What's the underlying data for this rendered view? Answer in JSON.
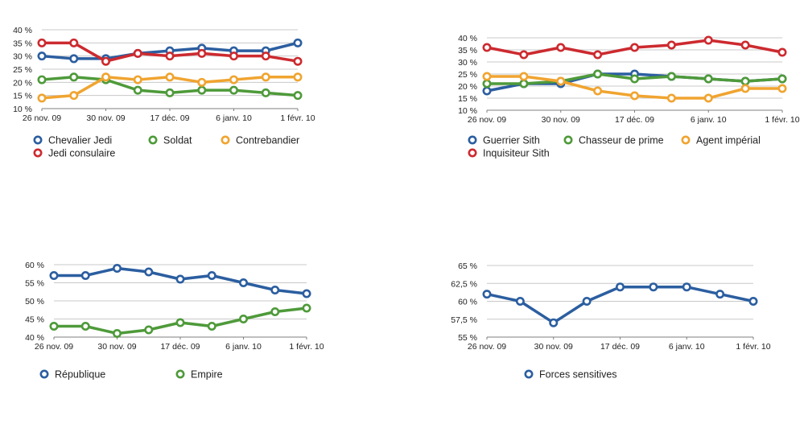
{
  "colors": {
    "blue": "#2b5ea0",
    "green": "#4e9a3a",
    "orange": "#f0a430",
    "red": "#cc2a2f",
    "grid": "#c8c8c8",
    "axis": "#7f7f7f",
    "text": "#222222"
  },
  "chart_data": [
    {
      "type": "line",
      "title": "",
      "xlabel": "",
      "ylabel": "",
      "x_tick_labels": [
        "26 nov. 09",
        "30 nov. 09",
        "17 déc. 09",
        "6 janv. 10",
        "1 févr. 10"
      ],
      "y_tick_labels": [
        "10 %",
        "15 %",
        "20 %",
        "25 %",
        "30 %",
        "35 %",
        "40 %"
      ],
      "ylim": [
        10,
        40
      ],
      "points": 9,
      "grid": true,
      "legend_position": "bottom",
      "series": [
        {
          "name": "Chevalier Jedi",
          "color_key": "blue",
          "values": [
            30,
            29,
            29,
            31,
            32,
            33,
            32,
            32,
            35
          ]
        },
        {
          "name": "Soldat",
          "color_key": "green",
          "values": [
            21,
            22,
            21,
            17,
            16,
            17,
            17,
            16,
            15
          ]
        },
        {
          "name": "Contrebandier",
          "color_key": "orange",
          "values": [
            14,
            15,
            22,
            21,
            22,
            20,
            21,
            22,
            22
          ]
        },
        {
          "name": "Jedi consulaire",
          "color_key": "red",
          "values": [
            35,
            35,
            28,
            31,
            30,
            31,
            30,
            30,
            28
          ]
        }
      ]
    },
    {
      "type": "line",
      "title": "",
      "xlabel": "",
      "ylabel": "",
      "x_tick_labels": [
        "26 nov. 09",
        "30 nov. 09",
        "17 déc. 09",
        "6 janv. 10",
        "1 févr. 10"
      ],
      "y_tick_labels": [
        "10 %",
        "15 %",
        "20 %",
        "25 %",
        "30 %",
        "35 %",
        "40 %"
      ],
      "ylim": [
        10,
        40
      ],
      "points": 9,
      "grid": true,
      "legend_position": "bottom",
      "series": [
        {
          "name": "Guerrier Sith",
          "color_key": "blue",
          "values": [
            18,
            21,
            21,
            25,
            25,
            24,
            23,
            22,
            23
          ]
        },
        {
          "name": "Chasseur de prime",
          "color_key": "green",
          "values": [
            21,
            21,
            22,
            25,
            23,
            24,
            23,
            22,
            23
          ]
        },
        {
          "name": "Agent impérial",
          "color_key": "orange",
          "values": [
            24,
            24,
            22,
            18,
            16,
            15,
            15,
            19,
            19
          ]
        },
        {
          "name": "Inquisiteur Sith",
          "color_key": "red",
          "values": [
            36,
            33,
            36,
            33,
            36,
            37,
            39,
            37,
            34
          ]
        }
      ]
    },
    {
      "type": "line",
      "title": "",
      "xlabel": "",
      "ylabel": "",
      "x_tick_labels": [
        "26 nov. 09",
        "30 nov. 09",
        "17 déc. 09",
        "6 janv. 10",
        "1 févr. 10"
      ],
      "y_tick_labels": [
        "40 %",
        "45 %",
        "50 %",
        "55 %",
        "60 %"
      ],
      "ylim": [
        40,
        60
      ],
      "points": 9,
      "grid": true,
      "legend_position": "bottom",
      "series": [
        {
          "name": "République",
          "color_key": "blue",
          "values": [
            57,
            57,
            59,
            58,
            56,
            57,
            55,
            53,
            52
          ]
        },
        {
          "name": "Empire",
          "color_key": "green",
          "values": [
            43,
            43,
            41,
            42,
            44,
            43,
            45,
            47,
            48
          ]
        }
      ]
    },
    {
      "type": "line",
      "title": "",
      "xlabel": "",
      "ylabel": "",
      "x_tick_labels": [
        "26 nov. 09",
        "30 nov. 09",
        "17 déc. 09",
        "6 janv. 10",
        "1 févr. 10"
      ],
      "y_tick_labels": [
        "55 %",
        "57,5 %",
        "60 %",
        "62,5 %",
        "65 %"
      ],
      "ylim": [
        55,
        65
      ],
      "points": 9,
      "grid": true,
      "legend_position": "bottom",
      "series": [
        {
          "name": "Forces sensitives",
          "color_key": "blue",
          "values": [
            61,
            60,
            57,
            60,
            62,
            62,
            62,
            61,
            60
          ]
        }
      ]
    }
  ]
}
